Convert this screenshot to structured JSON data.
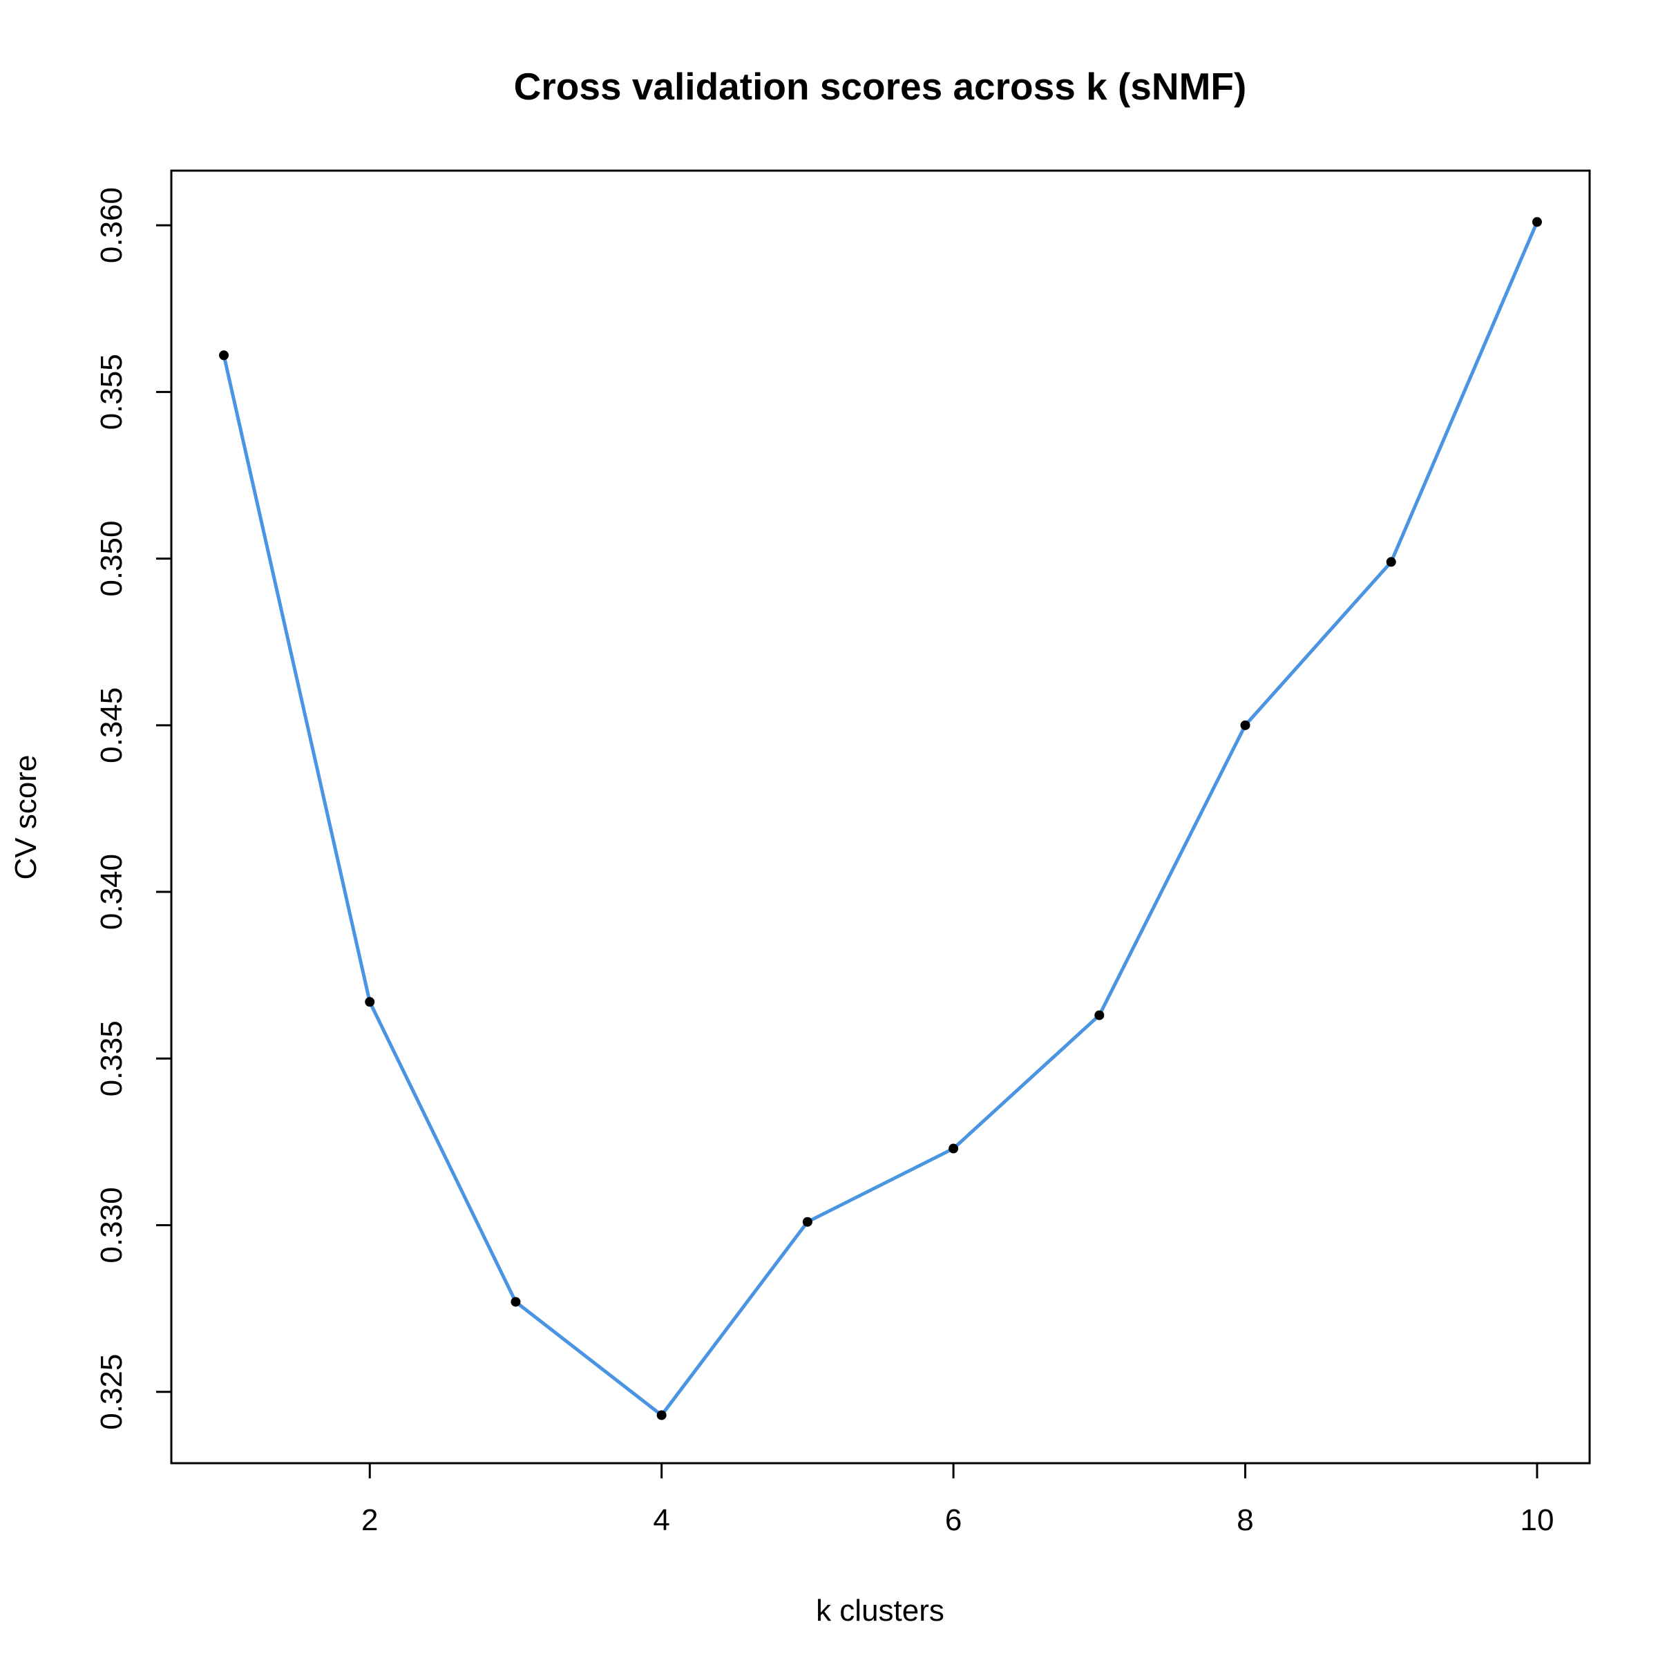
{
  "chart_data": {
    "type": "line",
    "title": "Cross validation scores across k (sNMF)",
    "xlabel": "k clusters",
    "ylabel": "CV score",
    "x": [
      1,
      2,
      3,
      4,
      5,
      6,
      7,
      8,
      9,
      10
    ],
    "series": [
      {
        "values": [
          0.3561,
          0.3367,
          0.3277,
          0.3243,
          0.3301,
          0.3323,
          0.3363,
          0.345,
          0.3499,
          0.3601
        ]
      }
    ],
    "xlim": [
      0.64,
      10.36
    ],
    "ylim": [
      0.32286,
      0.36164
    ],
    "xticks": [
      2,
      4,
      6,
      8,
      10
    ],
    "xtick_labels": [
      "2",
      "4",
      "6",
      "8",
      "10"
    ],
    "yticks": [
      0.325,
      0.33,
      0.335,
      0.34,
      0.345,
      0.35,
      0.355,
      0.36
    ],
    "ytick_labels": [
      "0.325",
      "0.330",
      "0.335",
      "0.340",
      "0.345",
      "0.350",
      "0.355",
      "0.360"
    ],
    "grid": false,
    "line_color": "#4a94e2",
    "point_color": "#000000"
  }
}
